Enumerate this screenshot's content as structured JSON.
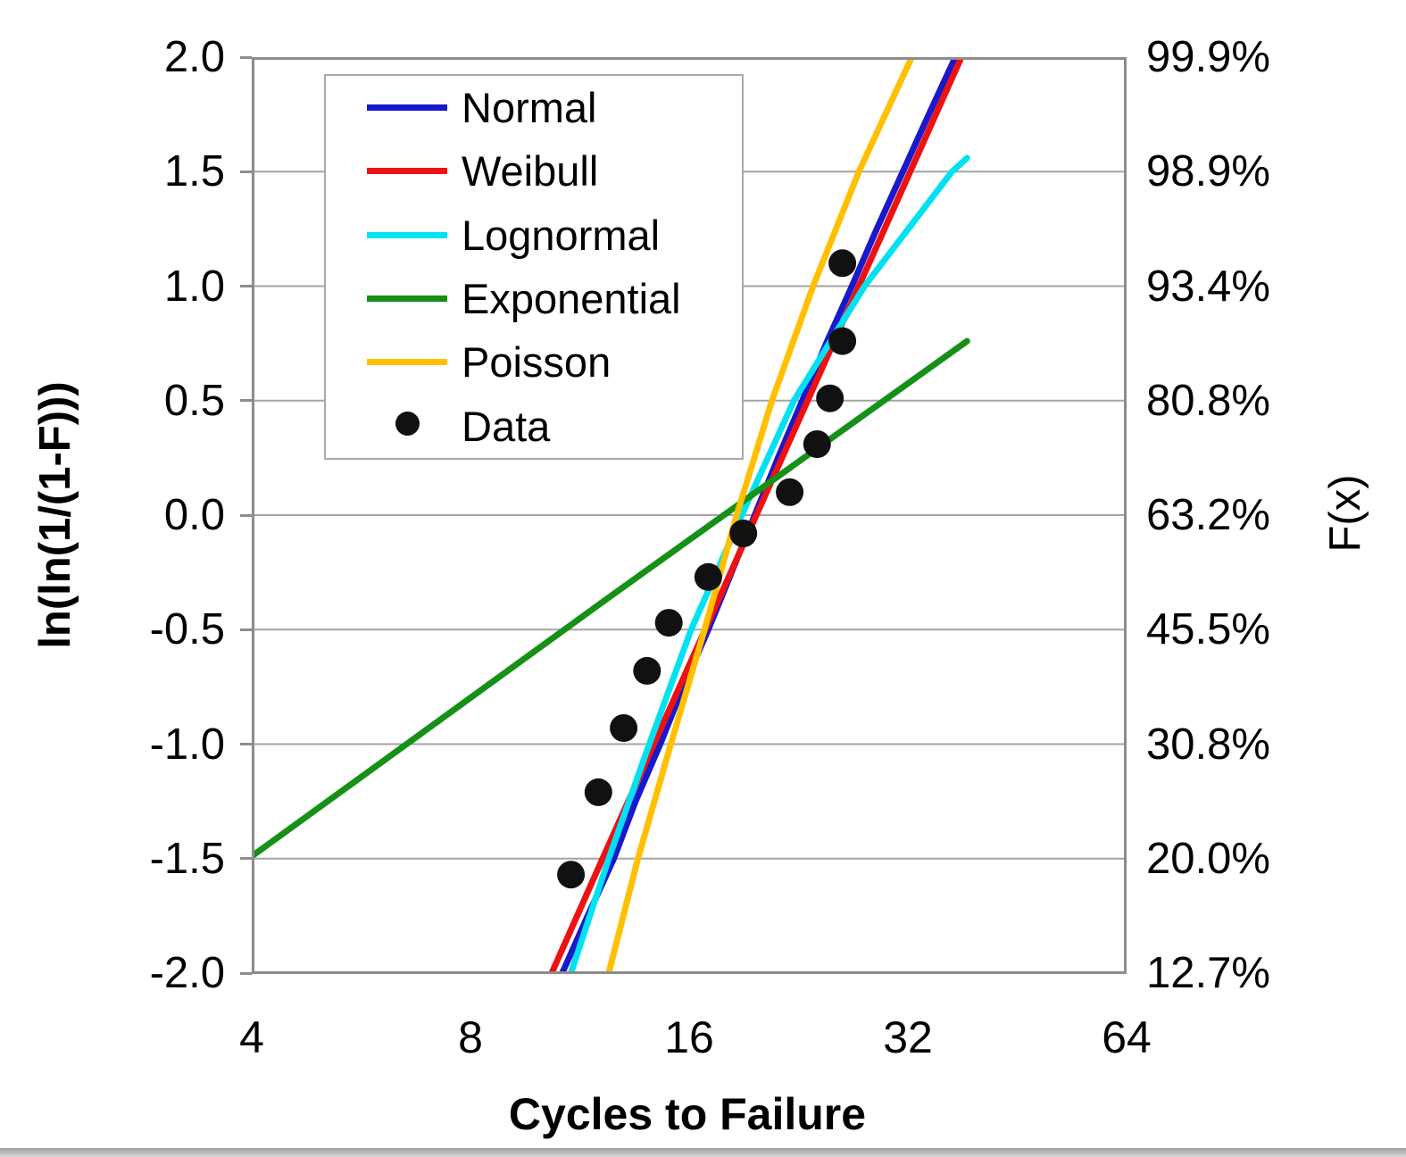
{
  "chart_data": {
    "type": "line+scatter",
    "title": "",
    "xlabel": "Cycles to Failure",
    "ylabel_left": "ln(ln(1/(1-F)))",
    "ylabel_right": "F(x)",
    "x_scale": "log2",
    "xlim": [
      4,
      64
    ],
    "ylim": [
      -2.0,
      2.0
    ],
    "grid": "horizontal",
    "legend_position": "upper-left-inside",
    "x_ticks": [
      4,
      8,
      16,
      32,
      64
    ],
    "x_tick_labels": [
      "4",
      "8",
      "16",
      "32",
      "64"
    ],
    "y_tick_values": [
      2.0,
      1.5,
      1.0,
      0.5,
      0.0,
      -0.5,
      -1.0,
      -1.5,
      -2.0
    ],
    "y_tick_labels_left": [
      "2.0",
      "1.5",
      "1.0",
      "0.5",
      "0.0",
      "-0.5",
      "-1.0",
      "-1.5",
      "-2.0"
    ],
    "y_tick_labels_right": [
      "99.9%",
      "98.9%",
      "93.4%",
      "80.8%",
      "63.2%",
      "45.5%",
      "30.8%",
      "20.0%",
      "12.7%"
    ],
    "grid_color": "#a3a3a3",
    "axis_color": "#8c8c8c",
    "series": [
      {
        "name": "Normal",
        "color": "#1818cc",
        "points": [
          [
            10.7,
            -2.0
          ],
          [
            11.6,
            -1.75
          ],
          [
            12.6,
            -1.5
          ],
          [
            13.5,
            -1.25
          ],
          [
            14.6,
            -1.0
          ],
          [
            15.7,
            -0.75
          ],
          [
            17.0,
            -0.5
          ],
          [
            18.3,
            -0.25
          ],
          [
            19.7,
            0.0
          ],
          [
            21.2,
            0.25
          ],
          [
            22.9,
            0.5
          ],
          [
            24.7,
            0.75
          ],
          [
            26.8,
            1.0
          ],
          [
            29.0,
            1.25
          ],
          [
            31.5,
            1.5
          ],
          [
            34.2,
            1.75
          ],
          [
            37.2,
            2.0
          ]
        ]
      },
      {
        "name": "Weibull",
        "color": "#ee1111",
        "points": [
          [
            10.35,
            -2.0
          ],
          [
            12.16,
            -1.5
          ],
          [
            14.31,
            -1.0
          ],
          [
            16.83,
            -0.5
          ],
          [
            19.8,
            0.0
          ],
          [
            23.29,
            0.5
          ],
          [
            27.4,
            1.0
          ],
          [
            32.24,
            1.5
          ],
          [
            37.92,
            2.0
          ]
        ]
      },
      {
        "name": "Lognormal",
        "color": "#00e2f2",
        "points": [
          [
            11.0,
            -2.0
          ],
          [
            12.4,
            -1.5
          ],
          [
            14.1,
            -1.0
          ],
          [
            16.1,
            -0.5
          ],
          [
            18.9,
            0.0
          ],
          [
            22.3,
            0.5
          ],
          [
            27.9,
            1.0
          ],
          [
            36.8,
            1.5
          ],
          [
            38.6,
            1.56
          ]
        ]
      },
      {
        "name": "Exponential",
        "color": "#169016",
        "points": [
          [
            4.0,
            -1.49
          ],
          [
            12.4,
            -0.36
          ],
          [
            38.6,
            0.76
          ]
        ]
      },
      {
        "name": "Poisson",
        "color": "#ffc000",
        "points": [
          [
            12.4,
            -2.0
          ],
          [
            13.6,
            -1.5
          ],
          [
            15.1,
            -1.0
          ],
          [
            16.8,
            -0.5
          ],
          [
            18.6,
            0.0
          ],
          [
            20.8,
            0.5
          ],
          [
            23.7,
            1.0
          ],
          [
            27.4,
            1.5
          ],
          [
            32.4,
            2.0
          ]
        ]
      }
    ],
    "scatter": {
      "name": "Data",
      "color": "#111111",
      "points": [
        [
          11,
          -1.57
        ],
        [
          12,
          -1.21
        ],
        [
          13,
          -0.93
        ],
        [
          14,
          -0.68
        ],
        [
          15,
          -0.47
        ],
        [
          17,
          -0.27
        ],
        [
          19,
          -0.08
        ],
        [
          22,
          0.1
        ],
        [
          24,
          0.31
        ],
        [
          25,
          0.51
        ],
        [
          26,
          0.76
        ],
        [
          26,
          1.1
        ]
      ]
    }
  }
}
